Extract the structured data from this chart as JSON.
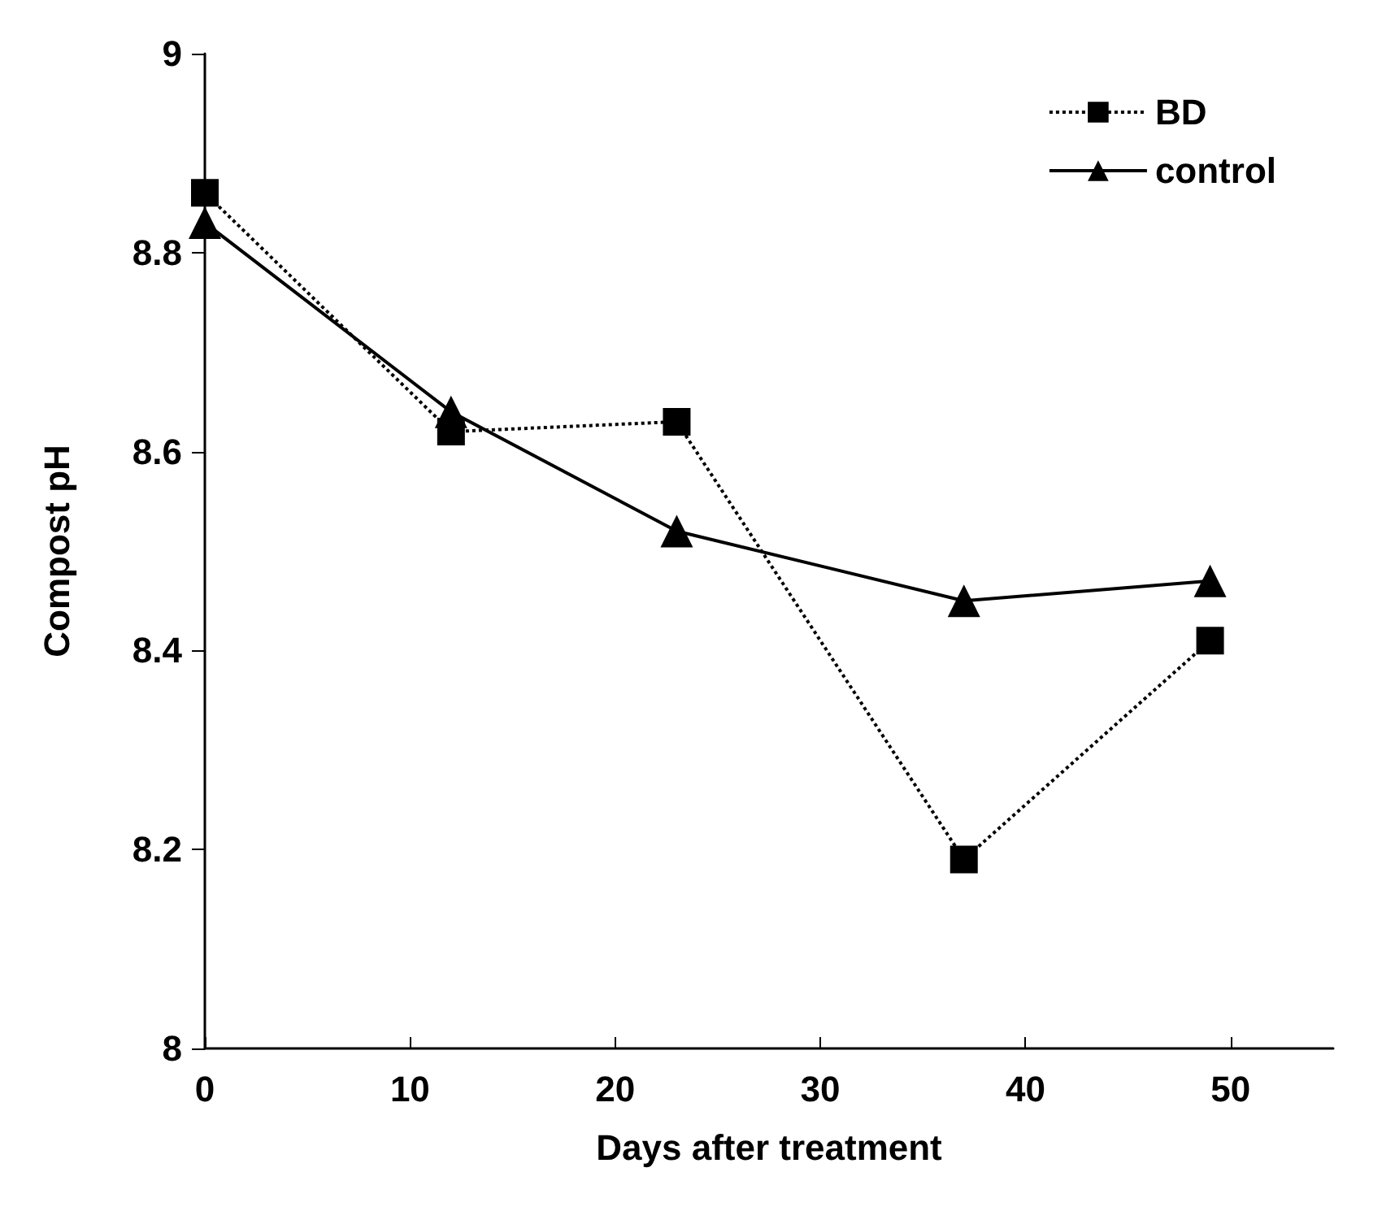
{
  "chart_data": {
    "type": "line",
    "xlabel": "Days after treatment",
    "ylabel": "Compost pH",
    "x": [
      0,
      12,
      23,
      37,
      49
    ],
    "series": [
      {
        "name": "BD",
        "color": "#000000",
        "values": [
          8.86,
          8.62,
          8.63,
          8.19,
          8.41
        ],
        "marker": "square",
        "line_style": "dotted"
      },
      {
        "name": "control",
        "color": "#000000",
        "values": [
          8.83,
          8.64,
          8.52,
          8.45,
          8.47
        ],
        "marker": "triangle",
        "line_style": "solid"
      }
    ],
    "xlim": [
      0,
      55
    ],
    "xticks": [
      0,
      10,
      20,
      30,
      40,
      50
    ],
    "ylim": [
      8,
      9
    ],
    "yticks": [
      8,
      8.2,
      8.4,
      8.6,
      8.8,
      9
    ],
    "grid": false,
    "legend": "top right"
  }
}
